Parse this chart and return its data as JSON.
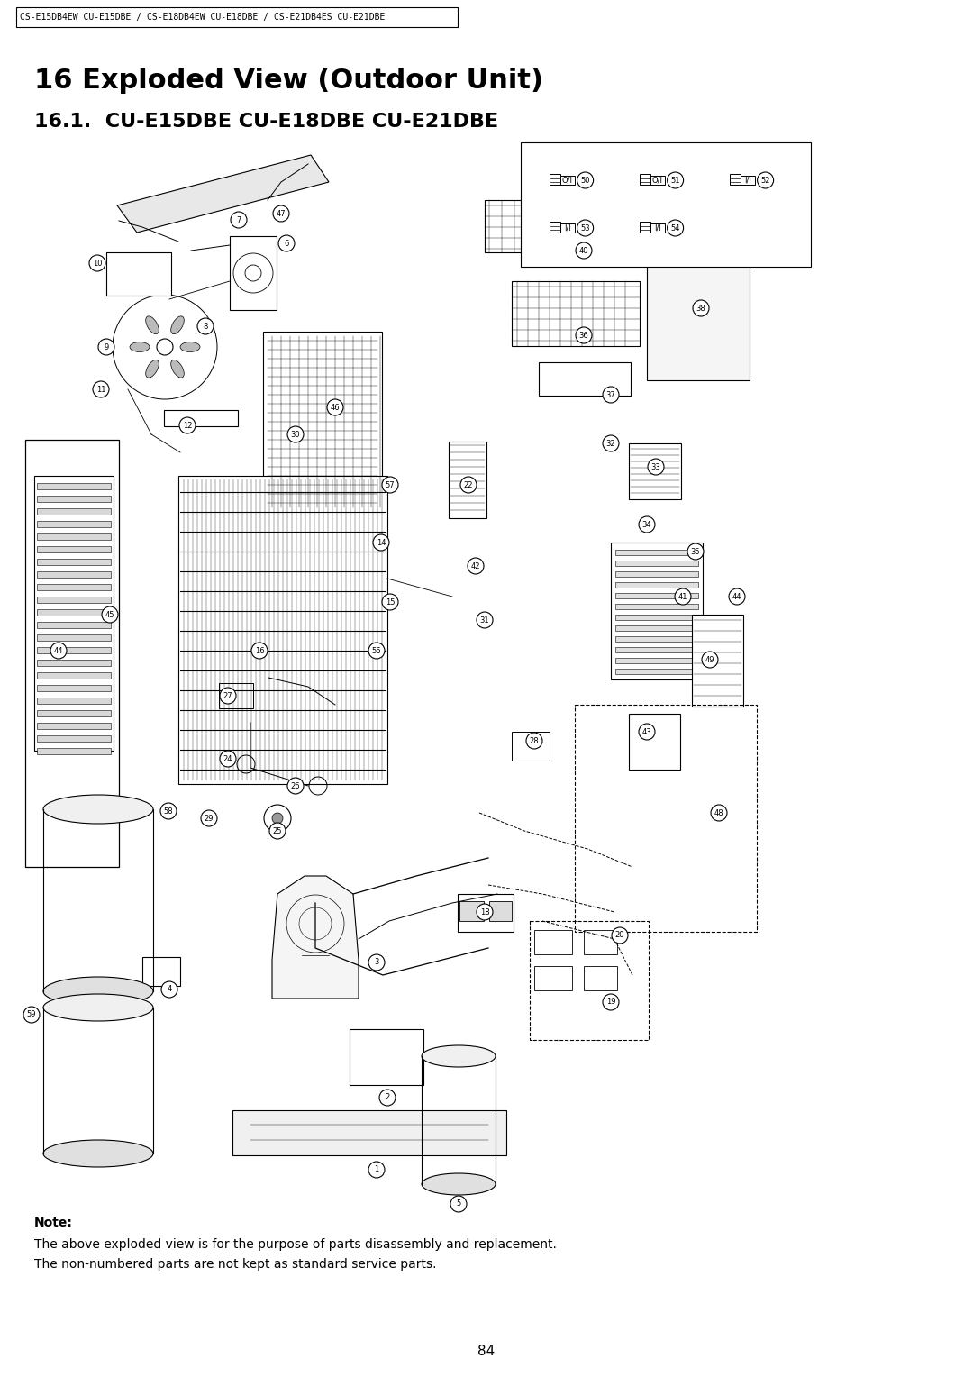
{
  "page_width": 10.8,
  "page_height": 15.28,
  "background_color": "#ffffff",
  "header_box_text": "CS-E15DB4EW CU-E15DBE / CS-E18DB4EW CU-E18DBE / CS-E21DB4ES CU-E21DBE",
  "title": "16 Exploded View (Outdoor Unit)",
  "subtitle": "16.1.  CU-E15DBE CU-E18DBE CU-E21DBE",
  "note_title": "Note:",
  "note_line1": "The above exploded view is for the purpose of parts disassembly and replacement.",
  "note_line2": "The non-numbered parts are not kept as standard service parts.",
  "page_number": "84",
  "title_fontsize": 22,
  "subtitle_fontsize": 16,
  "header_fontsize": 7,
  "note_fontsize": 10,
  "page_num_fontsize": 11
}
